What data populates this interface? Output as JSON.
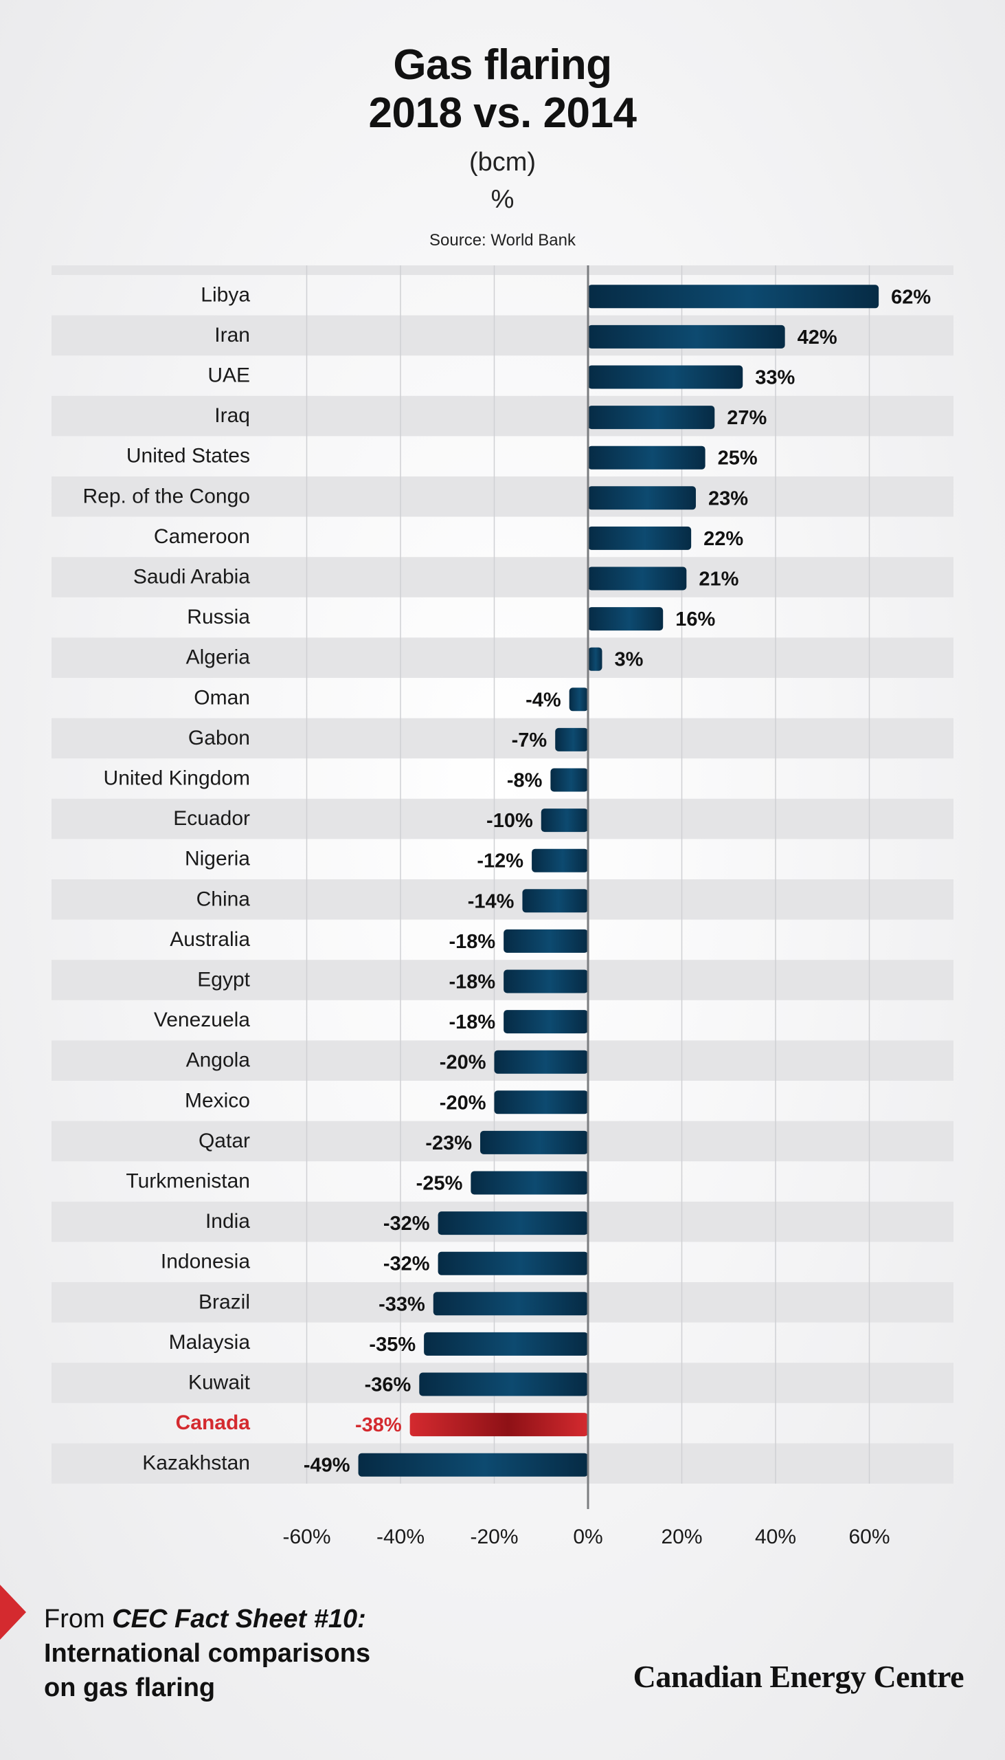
{
  "chart_data": {
    "type": "bar",
    "orientation": "horizontal",
    "title_line1": "Gas flaring",
    "title_line2": "2018 vs. 2014",
    "unit": "(bcm)",
    "unit2": "%",
    "source": "Source: World Bank",
    "categories": [
      "Libya",
      "Iran",
      "UAE",
      "Iraq",
      "United States",
      "Rep. of the Congo",
      "Cameroon",
      "Saudi Arabia",
      "Russia",
      "Algeria",
      "Oman",
      "Gabon",
      "United Kingdom",
      "Ecuador",
      "Nigeria",
      "China",
      "Australia",
      "Egypt",
      "Venezuela",
      "Angola",
      "Mexico",
      "Qatar",
      "Turkmenistan",
      "India",
      "Indonesia",
      "Brazil",
      "Malaysia",
      "Kuwait",
      "Canada",
      "Kazakhstan"
    ],
    "values": [
      62,
      42,
      33,
      27,
      25,
      23,
      22,
      21,
      16,
      3,
      -4,
      -7,
      -8,
      -10,
      -12,
      -14,
      -18,
      -18,
      -18,
      -20,
      -20,
      -23,
      -25,
      -32,
      -32,
      -33,
      -35,
      -36,
      -38,
      -49
    ],
    "labels": [
      "62%",
      "42%",
      "33%",
      "27%",
      "25%",
      "23%",
      "22%",
      "21%",
      "16%",
      "3%",
      "-4%",
      "-7%",
      "-8%",
      "-10%",
      "-12%",
      "-14%",
      "-18%",
      "-18%",
      "-18%",
      "-20%",
      "-20%",
      "-23%",
      "-25%",
      "-32%",
      "-32%",
      "-33%",
      "-35%",
      "-36%",
      "-38%",
      "-49%"
    ],
    "highlight": "Canada",
    "xlim": [
      -60,
      60
    ],
    "xticks": [
      -60,
      -40,
      -20,
      0,
      20,
      40,
      60
    ],
    "xtick_labels": [
      "-60%",
      "-40%",
      "-20%",
      "0%",
      "20%",
      "40%",
      "60%"
    ],
    "grid": true
  },
  "colors": {
    "bar": "#0d4a70",
    "bar_dark": "#062b45",
    "highlight": "#d42a2f",
    "highlight_dark": "#8e1116",
    "band": "#e4e4e6",
    "gridline": "#cfd0d3",
    "zero_line": "#7b7d80"
  },
  "footer": {
    "from": "From ",
    "fact_sheet": "CEC Fact Sheet #10:",
    "line2": "International comparisons",
    "line3": "on gas flaring",
    "brand": "Canadian Energy Centre"
  }
}
